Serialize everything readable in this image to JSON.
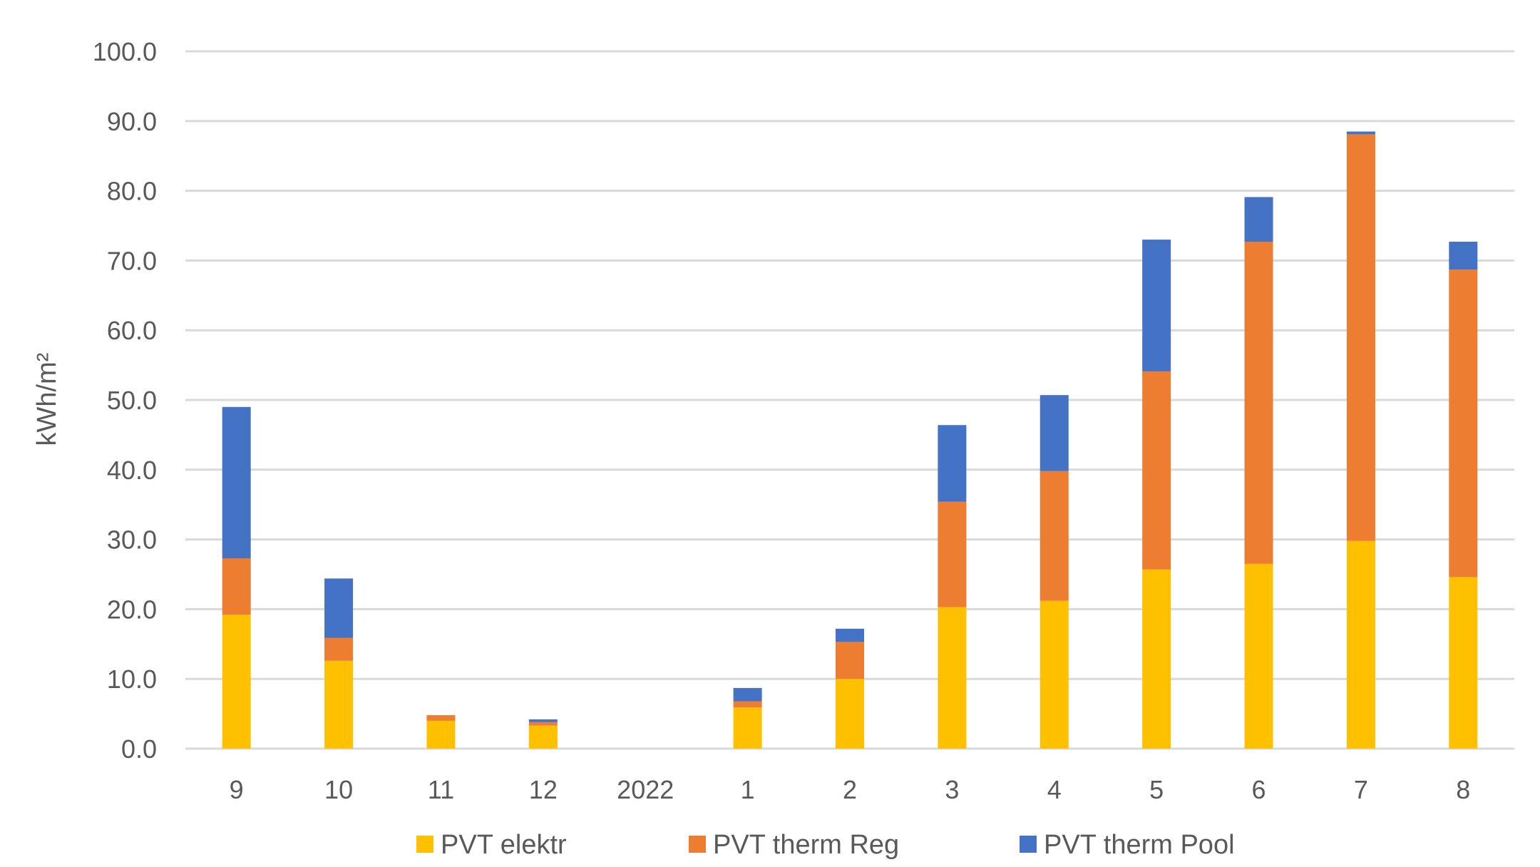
{
  "chart_data": {
    "type": "bar",
    "stacked": true,
    "categories": [
      "9",
      "10",
      "11",
      "12",
      "2022",
      "1",
      "2",
      "3",
      "4",
      "5",
      "6",
      "7",
      "8"
    ],
    "series": [
      {
        "name": "PVT elektr",
        "color": "#FFC000",
        "values": [
          19.2,
          12.6,
          4.0,
          3.3,
          0,
          5.9,
          10.0,
          20.3,
          21.2,
          25.7,
          26.5,
          29.8,
          24.6
        ]
      },
      {
        "name": "PVT therm Reg",
        "color": "#ED7D31",
        "values": [
          8.1,
          3.3,
          0.8,
          0.5,
          0,
          0.9,
          5.3,
          15.1,
          18.6,
          28.4,
          46.2,
          58.3,
          44.1
        ]
      },
      {
        "name": "PVT therm Pool",
        "color": "#4472C4",
        "values": [
          21.7,
          8.5,
          0,
          0.4,
          0,
          1.9,
          1.9,
          11.0,
          10.9,
          18.9,
          6.4,
          0.4,
          4.0
        ]
      }
    ],
    "ylabel": "kWh/m²",
    "ylim": [
      0,
      100
    ],
    "yticks": [
      "0.0",
      "10.0",
      "20.0",
      "30.0",
      "40.0",
      "50.0",
      "60.0",
      "70.0",
      "80.0",
      "90.0",
      "100.0"
    ],
    "grid": true,
    "legend_position": "bottom"
  }
}
